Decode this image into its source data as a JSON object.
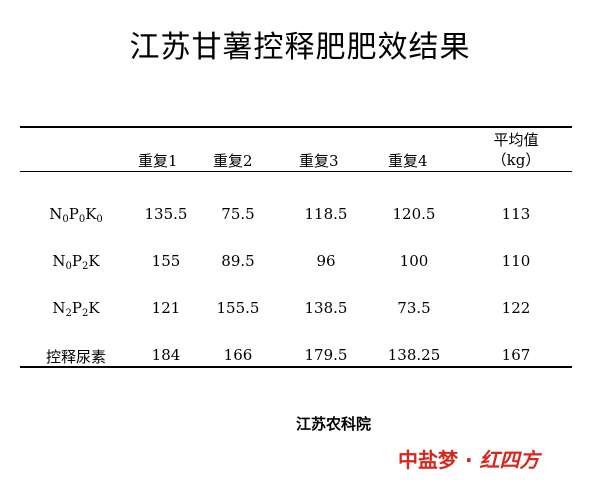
{
  "title": "江苏甘薯控释肥肥效结果",
  "table": {
    "columns": [
      "重复1",
      "重复2",
      "重复3",
      "重复4"
    ],
    "avg_header": {
      "line1": "平均值",
      "line2": "（kg）"
    },
    "rows": [
      {
        "label": {
          "type": "formula",
          "parts": [
            [
              "N",
              "0"
            ],
            [
              "P",
              "0"
            ],
            [
              "K",
              "0"
            ]
          ]
        },
        "values": [
          "135.5",
          "75.5",
          "118.5",
          "120.5"
        ],
        "average": "113"
      },
      {
        "label": {
          "type": "formula",
          "parts": [
            [
              "N",
              "0"
            ],
            [
              "P",
              "2"
            ],
            [
              "K",
              ""
            ]
          ]
        },
        "values": [
          "155",
          "89.5",
          "96",
          "100"
        ],
        "average": "110"
      },
      {
        "label": {
          "type": "formula",
          "parts": [
            [
              "N",
              "2"
            ],
            [
              "P",
              "2"
            ],
            [
              "K",
              ""
            ]
          ]
        },
        "values": [
          "121",
          "155.5",
          "138.5",
          "73.5"
        ],
        "average": "122"
      },
      {
        "label": {
          "type": "text",
          "text": "控释尿素"
        },
        "values": [
          "184",
          "166",
          "179.5",
          "138.25"
        ],
        "average": "167"
      }
    ]
  },
  "source": "江苏农科院",
  "watermark": {
    "prefix": "中盐梦 · ",
    "brush": "红四方"
  }
}
